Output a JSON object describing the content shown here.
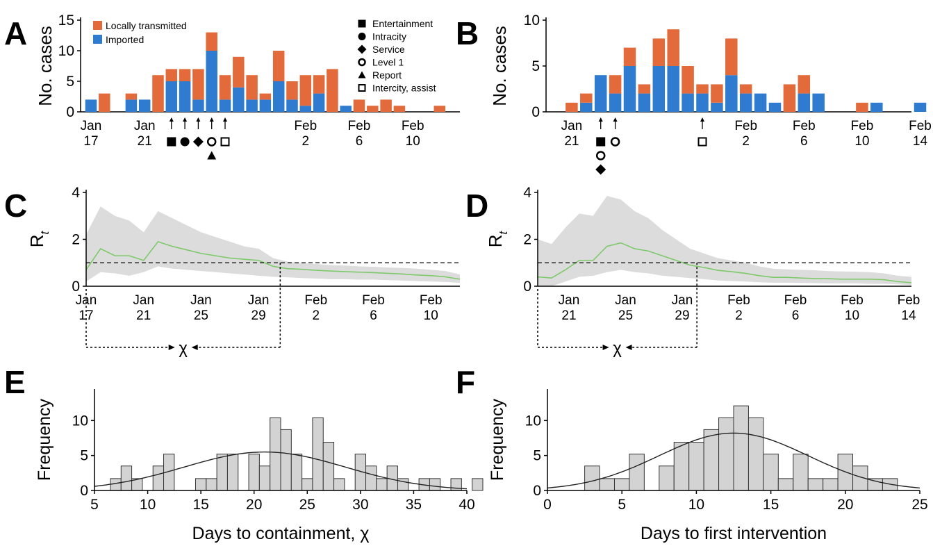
{
  "colors": {
    "local": "#e36a3a",
    "imported": "#2e7bcf",
    "rt_line": "#7dc96a",
    "ci_band": "#dcdcdc",
    "hist_fill": "#d3d3d3"
  },
  "panel_labels": [
    "A",
    "B",
    "C",
    "D",
    "E",
    "F"
  ],
  "chart_data": [
    {
      "panel": "A",
      "type": "bar",
      "stacked": true,
      "ylabel": "No. cases",
      "ylim": [
        0,
        15
      ],
      "yticks": [
        0,
        5,
        10,
        15
      ],
      "xticks": [
        "Jan\n17",
        "Jan\n21",
        "Feb\n2",
        "Feb\n6",
        "Feb\n10"
      ],
      "categories": [
        "Jan 17",
        "Jan 18",
        "Jan 19",
        "Jan 20",
        "Jan 21",
        "Jan 22",
        "Jan 23",
        "Jan 24",
        "Jan 25",
        "Jan 26",
        "Jan 27",
        "Jan 28",
        "Jan 29",
        "Jan 30",
        "Jan 31",
        "Feb 1",
        "Feb 2",
        "Feb 3",
        "Feb 4",
        "Feb 5",
        "Feb 6",
        "Feb 7",
        "Feb 8",
        "Feb 9",
        "Feb 10",
        "Feb 11",
        "Feb 12",
        "Feb 13"
      ],
      "series": [
        {
          "name": "Imported",
          "color": "#2e7bcf",
          "values": [
            2,
            0,
            0,
            2,
            2,
            0,
            5,
            5,
            2,
            10,
            2,
            4,
            2,
            2,
            5,
            2,
            1,
            3,
            0,
            1,
            0,
            0,
            0,
            0,
            0,
            0,
            0,
            0
          ]
        },
        {
          "name": "Locally transmitted",
          "color": "#e36a3a",
          "values": [
            0,
            3,
            0,
            1,
            0,
            6,
            2,
            2,
            5,
            3,
            4,
            5,
            4,
            1,
            5,
            3,
            5,
            3,
            7,
            0,
            2,
            1,
            2,
            1,
            0,
            0,
            1,
            0
          ]
        }
      ],
      "legend": {
        "placement": "top-left",
        "entries": [
          "Locally transmitted",
          "Imported"
        ]
      },
      "interventions_legend": [
        {
          "marker": "filled-square",
          "label": "Entertainment"
        },
        {
          "marker": "filled-circle",
          "label": "Intracity"
        },
        {
          "marker": "filled-diamond",
          "label": "Service"
        },
        {
          "marker": "open-circle",
          "label": "Level 1"
        },
        {
          "marker": "filled-triangle",
          "label": "Report"
        },
        {
          "marker": "open-square",
          "label": "Intercity, assist"
        }
      ],
      "interventions": [
        {
          "date": "Jan 23",
          "markers": [
            "filled-square"
          ]
        },
        {
          "date": "Jan 24",
          "markers": [
            "filled-circle"
          ]
        },
        {
          "date": "Jan 25",
          "markers": [
            "filled-diamond"
          ]
        },
        {
          "date": "Jan 26",
          "markers": [
            "open-circle",
            "filled-triangle"
          ]
        },
        {
          "date": "Jan 27",
          "markers": [
            "open-square"
          ]
        }
      ]
    },
    {
      "panel": "B",
      "type": "bar",
      "stacked": true,
      "ylabel": "No. cases",
      "ylim": [
        0,
        10
      ],
      "yticks": [
        0,
        5,
        10
      ],
      "xticks": [
        "Jan\n21",
        "Feb\n2",
        "Feb\n6",
        "Feb\n10",
        "Feb\n14"
      ],
      "categories": [
        "Jan 20",
        "Jan 21",
        "Jan 22",
        "Jan 23",
        "Jan 24",
        "Jan 25",
        "Jan 26",
        "Jan 27",
        "Jan 28",
        "Jan 29",
        "Jan 30",
        "Jan 31",
        "Feb 1",
        "Feb 2",
        "Feb 3",
        "Feb 4",
        "Feb 5",
        "Feb 6",
        "Feb 7",
        "Feb 8",
        "Feb 9",
        "Feb 10",
        "Feb 11",
        "Feb 12",
        "Feb 13",
        "Feb 14"
      ],
      "series": [
        {
          "name": "Imported",
          "color": "#2e7bcf",
          "values": [
            0,
            0,
            1,
            4,
            2,
            5,
            2,
            5,
            5,
            2,
            2,
            1,
            4,
            2,
            2,
            1,
            0,
            2,
            2,
            0,
            0,
            0,
            1,
            0,
            0,
            1
          ]
        },
        {
          "name": "Locally transmitted",
          "color": "#e36a3a",
          "values": [
            0,
            1,
            1,
            0,
            2,
            2,
            1,
            3,
            4,
            3,
            1,
            2,
            4,
            1,
            0,
            0,
            3,
            2,
            0,
            0,
            0,
            1,
            0,
            0,
            0,
            0
          ]
        }
      ],
      "interventions": [
        {
          "date": "Jan 23",
          "markers": [
            "filled-square",
            "open-circle",
            "filled-diamond"
          ]
        },
        {
          "date": "Jan 24",
          "markers": [
            "open-circle"
          ]
        },
        {
          "date": "Jan 30",
          "markers": [
            "open-square"
          ]
        }
      ]
    },
    {
      "panel": "C",
      "type": "line",
      "ylabel": "Rt",
      "ylim": [
        0,
        4
      ],
      "yticks": [
        0,
        2,
        4
      ],
      "xticks": [
        "Jan\n17",
        "Jan\n21",
        "Jan\n25",
        "Jan\n29",
        "Feb\n2",
        "Feb\n6",
        "Feb\n10"
      ],
      "x": [
        0,
        1,
        2,
        3,
        4,
        5,
        6,
        7,
        8,
        9,
        10,
        11,
        12,
        13,
        14,
        15,
        16,
        17,
        18,
        19,
        20,
        21,
        22,
        23,
        24,
        25,
        26
      ],
      "rt": [
        0.7,
        1.6,
        1.3,
        1.3,
        1.1,
        1.9,
        1.7,
        1.55,
        1.4,
        1.3,
        1.2,
        1.15,
        1.1,
        0.85,
        0.75,
        0.72,
        0.68,
        0.65,
        0.62,
        0.6,
        0.58,
        0.55,
        0.52,
        0.48,
        0.45,
        0.4,
        0.3
      ],
      "ci_lower": [
        0.2,
        0.6,
        0.55,
        0.45,
        0.6,
        0.85,
        0.75,
        0.7,
        0.65,
        0.6,
        0.55,
        0.5,
        0.45,
        0.4,
        0.38,
        0.35,
        0.33,
        0.3,
        0.3,
        0.28,
        0.28,
        0.26,
        0.24,
        0.22,
        0.2,
        0.18,
        0.15
      ],
      "ci_upper": [
        2.2,
        3.4,
        3.0,
        2.8,
        2.3,
        3.2,
        2.9,
        2.6,
        2.3,
        2.1,
        1.9,
        1.7,
        1.6,
        1.2,
        1.05,
        0.98,
        0.95,
        0.9,
        0.88,
        0.85,
        0.83,
        0.8,
        0.78,
        0.75,
        0.7,
        0.65,
        0.5
      ],
      "threshold": 1,
      "containment_day": 13.5,
      "chi_label": "χ"
    },
    {
      "panel": "D",
      "type": "line",
      "ylabel": "Rt",
      "ylim": [
        0,
        4
      ],
      "yticks": [
        0,
        2,
        4
      ],
      "xticks": [
        "Jan\n21",
        "Jan\n25",
        "Jan\n29",
        "Feb\n2",
        "Feb\n6",
        "Feb\n10",
        "Feb\n14"
      ],
      "x": [
        0,
        1,
        2,
        3,
        4,
        5,
        6,
        7,
        8,
        9,
        10,
        11,
        12,
        13,
        14,
        15,
        16,
        17,
        18,
        19,
        20,
        21,
        22,
        23,
        24,
        25,
        26,
        27
      ],
      "rt": [
        0.4,
        0.35,
        0.7,
        1.1,
        1.1,
        1.7,
        1.85,
        1.6,
        1.5,
        1.3,
        1.1,
        0.9,
        0.8,
        0.68,
        0.62,
        0.55,
        0.45,
        0.38,
        0.38,
        0.35,
        0.33,
        0.32,
        0.3,
        0.3,
        0.3,
        0.28,
        0.2,
        0.15
      ],
      "ci_lower": [
        0.0,
        0.0,
        0.2,
        0.4,
        0.45,
        0.6,
        0.7,
        0.6,
        0.55,
        0.45,
        0.4,
        0.35,
        0.3,
        0.25,
        0.22,
        0.2,
        0.17,
        0.15,
        0.15,
        0.14,
        0.13,
        0.12,
        0.12,
        0.12,
        0.1,
        0.1,
        0.08,
        0.05
      ],
      "ci_upper": [
        2.0,
        1.8,
        2.5,
        3.1,
        3.0,
        3.85,
        3.7,
        3.2,
        2.9,
        2.4,
        2.0,
        1.6,
        1.4,
        1.2,
        1.1,
        1.0,
        0.85,
        0.75,
        0.72,
        0.7,
        0.68,
        0.65,
        0.63,
        0.62,
        0.6,
        0.55,
        0.45,
        0.4
      ],
      "threshold": 1,
      "containment_day": 11.5,
      "chi_label": "χ"
    },
    {
      "panel": "E",
      "type": "bar",
      "subtype": "histogram",
      "xlabel": "Days to containment, χ",
      "ylabel": "Frequency",
      "xlim": [
        5,
        40
      ],
      "ylim": [
        0,
        14.5
      ],
      "yticks": [
        0,
        5,
        10
      ],
      "xticks": [
        5,
        10,
        15,
        20,
        25,
        30,
        35,
        40
      ],
      "bin_start": 6.5,
      "bin_width": 1,
      "values": [
        1.7,
        3.5,
        1.7,
        0,
        3.5,
        5.2,
        0,
        0,
        1.7,
        1.7,
        5.2,
        5.2,
        0,
        5.2,
        3.5,
        10.4,
        8.7,
        5.2,
        1.7,
        10.4,
        6.9,
        1.7,
        0,
        5.2,
        3.5,
        1.7,
        3.5,
        1.7,
        0,
        1.7,
        1.7,
        0,
        1.7,
        0,
        1.7
      ],
      "fit": {
        "type": "normal",
        "mean": 21,
        "peak": 5.5,
        "sd": 7.6
      }
    },
    {
      "panel": "F",
      "type": "bar",
      "subtype": "histogram",
      "xlabel": "Days to first intervention",
      "ylabel": "Frequency",
      "xlim": [
        0,
        25
      ],
      "ylim": [
        0,
        14.5
      ],
      "yticks": [
        0,
        5,
        10
      ],
      "xticks": [
        0,
        5,
        10,
        15,
        20,
        25
      ],
      "bin_start": 2.5,
      "bin_width": 1,
      "values": [
        3.5,
        1.7,
        1.7,
        5.2,
        0,
        3.5,
        6.9,
        6.9,
        8.7,
        10.4,
        12.1,
        10.4,
        5.2,
        1.7,
        5.2,
        1.7,
        1.7,
        5.2,
        3.5,
        1.7,
        1.7
      ],
      "fit": {
        "type": "normal",
        "mean": 12.5,
        "peak": 8.2,
        "sd": 5
      }
    }
  ]
}
